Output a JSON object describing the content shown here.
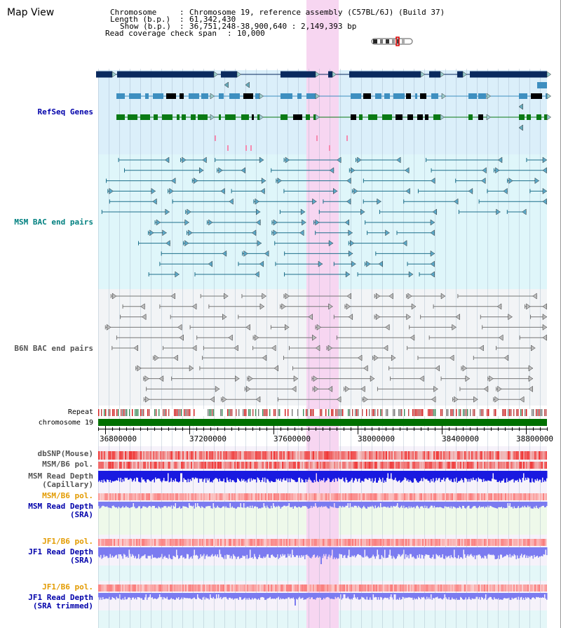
{
  "title": "Map View",
  "header": {
    "chromosome_key": "Chromosome",
    "chromosome_value": "Chromosome 19, reference assembly (C57BL/6J) (Build 37)",
    "length_key": "Length (b.p.)",
    "length_value": "61,342,430",
    "show_key": "Show (b.p.)",
    "show_value": "36,751,248-38,900,640 : 2,149,393 bp",
    "coverage_key": "Read coverage check span",
    "coverage_value": "10,000"
  },
  "tracks": {
    "refseq": "RefSeq Genes",
    "msm_bac": "MSM BAC end pairs",
    "b6n_bac": "B6N BAC end pairs",
    "repeat": "Repeat",
    "chromosome": "chromosome 19",
    "dbsnp": "dbSNP(Mouse)",
    "msm_b6_pol": "MSM/B6 pol.",
    "msm_depth_cap_1": "MSM Read Depth",
    "msm_depth_cap_2": "(Capillary)",
    "msm_b6_pol_2": "MSM/B6 pol.",
    "msm_depth_sra_1": "MSM Read Depth",
    "msm_depth_sra_2": "(SRA)",
    "jf1_b6_pol": "JF1/B6 pol.",
    "jf1_depth_sra_1": "JF1 Read Depth",
    "jf1_depth_sra_2": "(SRA)",
    "jf1_b6_pol_2": "JF1/B6 pol.",
    "jf1_depth_trim_1": "JF1 Read Depth",
    "jf1_depth_trim_2": "(SRA trimmed)"
  },
  "axis_ticks": [
    "36800000",
    "37200000",
    "37600000",
    "38000000",
    "38400000",
    "38800000"
  ],
  "colors": {
    "refseq_bg": "#dbeffa",
    "msm_bg": "#dff6fa",
    "b6n_bg": "#f2f4f6",
    "highlight": "#f7d6f1",
    "gene_dark": "#0a2a5e",
    "gene_mid": "#3e8fc0",
    "gene_green": "#0a7a14",
    "msm_line": "#1d6f8a",
    "b6n_line": "#777777",
    "depth_blue": "#1a1ae0",
    "depth_light": "#7b7bf0",
    "label_blue": "#0000aa",
    "label_teal": "#008080",
    "label_orange": "#e39b00",
    "chrom_green": "#007000"
  }
}
